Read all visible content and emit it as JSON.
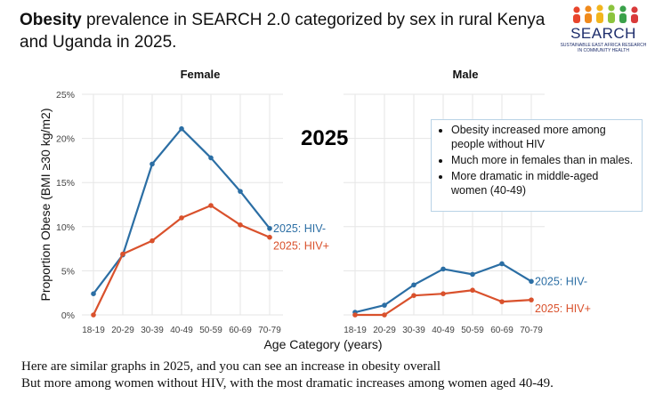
{
  "slide": {
    "title_bold": "Obesity",
    "title_rest": " prevalence in SEARCH 2.0 categorized by sex in rural Kenya and Uganda in 2025.",
    "logo_text": "SEARCH",
    "logo_sub": "SUSTAINABLE EAST AFRICA RESEARCH IN COMMUNITY HEALTH",
    "year_label": "2025",
    "callout": [
      "Obesity increased more among people without HIV",
      "Much more in females than in males.",
      "More dramatic in middle-aged women (40-49)"
    ],
    "footer": [
      "Here are similar graphs in 2025, and you can see an increase in obesity overall",
      "But more among women without HIV, with the most dramatic increases among women aged 40-49."
    ]
  },
  "colors": {
    "hiv_neg": "#2b6ea4",
    "hiv_pos": "#d9512c",
    "grid": "#e6e6e6",
    "logo": "#1d2d6b"
  },
  "chart_data": {
    "type": "line",
    "xlabel": "Age Category (years)",
    "ylabel": "Proportion Obese (BMI ≥30 kg/m2)",
    "categories": [
      "18-19",
      "20-29",
      "30-39",
      "40-49",
      "50-59",
      "60-69",
      "70-79"
    ],
    "ylim": [
      0,
      25
    ],
    "yticks": [
      0,
      5,
      10,
      15,
      20,
      25
    ],
    "ytick_labels": [
      "0%",
      "5%",
      "10%",
      "15%",
      "20%",
      "25%"
    ],
    "grid": true,
    "panels": [
      {
        "title": "Female",
        "series": [
          {
            "name": "2025: HIV-",
            "values": [
              2.4,
              6.8,
              17.1,
              21.1,
              17.8,
              14.0,
              9.8
            ]
          },
          {
            "name": "2025: HIV+",
            "values": [
              0.0,
              6.9,
              8.4,
              11.0,
              12.4,
              10.2,
              8.8
            ]
          }
        ]
      },
      {
        "title": "Male",
        "series": [
          {
            "name": "2025: HIV-",
            "values": [
              0.3,
              1.1,
              3.4,
              5.2,
              4.6,
              5.8,
              3.8
            ]
          },
          {
            "name": "2025: HIV+",
            "values": [
              0.0,
              0.0,
              2.2,
              2.4,
              2.8,
              1.5,
              1.7
            ]
          }
        ]
      }
    ]
  }
}
